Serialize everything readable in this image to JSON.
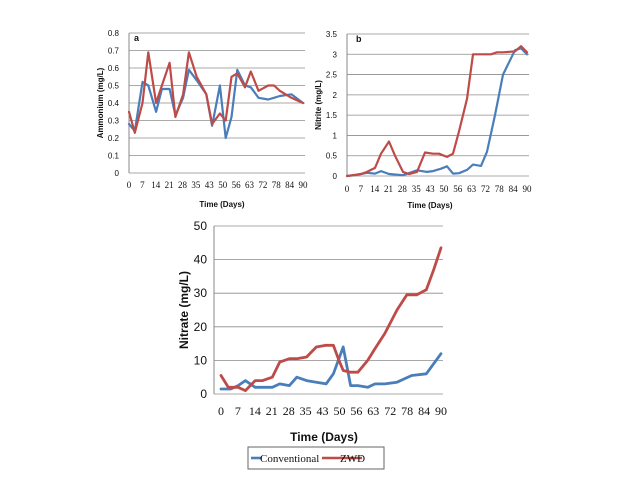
{
  "colors": {
    "conventional": "#4a7ebb",
    "zwd": "#be4b48",
    "grid": "#8c8c8c"
  },
  "legend": {
    "conventional_label": "Conventional",
    "zwd_label": "ZWD"
  },
  "chart_data": [
    {
      "type": "line",
      "panel_label": "a",
      "title": "",
      "xlabel": "Time (Days)",
      "ylabel": "Ammonium (mg/L)",
      "xlim": [
        0,
        90
      ],
      "ylim": [
        0,
        0.8
      ],
      "yticks": [
        "0",
        "0.1",
        "0.2",
        "0.3",
        "0.4",
        "0.5",
        "0.6",
        "0.7",
        "0.8"
      ],
      "xticks": [
        "0",
        "7",
        "14",
        "21",
        "28",
        "35",
        "43",
        "50",
        "56",
        "63",
        "72",
        "78",
        "84",
        "90"
      ],
      "series": [
        {
          "name": "Conventional",
          "color_key": "conventional",
          "x": [
            0,
            3,
            7,
            10,
            14,
            17,
            21,
            24,
            28,
            31,
            35,
            40,
            43,
            47,
            50,
            53,
            56,
            60,
            63,
            67,
            72,
            75,
            78,
            84,
            90
          ],
          "y": [
            0.28,
            0.24,
            0.52,
            0.5,
            0.35,
            0.48,
            0.48,
            0.33,
            0.43,
            0.59,
            0.53,
            0.45,
            0.27,
            0.5,
            0.2,
            0.32,
            0.59,
            0.5,
            0.49,
            0.43,
            0.42,
            0.43,
            0.44,
            0.45,
            0.4
          ]
        },
        {
          "name": "ZWD",
          "color_key": "zwd",
          "x": [
            0,
            3,
            7,
            10,
            14,
            17,
            21,
            24,
            28,
            31,
            35,
            40,
            43,
            47,
            50,
            53,
            56,
            60,
            63,
            67,
            72,
            75,
            78,
            84,
            90
          ],
          "y": [
            0.35,
            0.23,
            0.4,
            0.69,
            0.4,
            0.5,
            0.63,
            0.32,
            0.45,
            0.69,
            0.55,
            0.45,
            0.28,
            0.34,
            0.3,
            0.55,
            0.57,
            0.49,
            0.58,
            0.47,
            0.5,
            0.5,
            0.47,
            0.43,
            0.4
          ]
        }
      ]
    },
    {
      "type": "line",
      "panel_label": "b",
      "title": "",
      "xlabel": "Time (Days)",
      "ylabel": "Nitrite (mg/L)",
      "xlim": [
        0,
        90
      ],
      "ylim": [
        0,
        3.5
      ],
      "yticks": [
        "0",
        "0.5",
        "1",
        "1.5",
        "2",
        "2.5",
        "3",
        "3.5"
      ],
      "xticks": [
        "0",
        "7",
        "14",
        "21",
        "28",
        "35",
        "43",
        "50",
        "56",
        "63",
        "72",
        "78",
        "84",
        "90"
      ],
      "series": [
        {
          "name": "Conventional",
          "color_key": "conventional",
          "x": [
            0,
            4,
            7,
            10,
            14,
            17,
            21,
            28,
            35,
            40,
            43,
            47,
            50,
            53,
            56,
            60,
            63,
            67,
            70,
            74,
            78,
            84,
            87,
            90
          ],
          "y": [
            0.0,
            0.02,
            0.05,
            0.08,
            0.06,
            0.12,
            0.05,
            0.02,
            0.14,
            0.1,
            0.12,
            0.18,
            0.24,
            0.06,
            0.07,
            0.15,
            0.28,
            0.25,
            0.6,
            1.5,
            2.5,
            3.1,
            3.15,
            3.0
          ]
        },
        {
          "name": "ZWD",
          "color_key": "zwd",
          "x": [
            0,
            4,
            7,
            10,
            14,
            17,
            21,
            24,
            28,
            31,
            35,
            39,
            43,
            46,
            50,
            53,
            56,
            60,
            63,
            67,
            72,
            75,
            78,
            84,
            87,
            90
          ],
          "y": [
            0.0,
            0.03,
            0.05,
            0.1,
            0.2,
            0.55,
            0.85,
            0.5,
            0.1,
            0.05,
            0.1,
            0.58,
            0.55,
            0.55,
            0.47,
            0.55,
            1.1,
            1.9,
            3.0,
            3.0,
            3.0,
            3.05,
            3.05,
            3.07,
            3.2,
            3.05
          ]
        }
      ]
    },
    {
      "type": "line",
      "panel_label": "",
      "title": "",
      "xlabel": "Time (Days)",
      "ylabel": "Nitrate (mg/L)",
      "xlim": [
        0,
        90
      ],
      "ylim": [
        0,
        50
      ],
      "yticks": [
        "0",
        "10",
        "20",
        "30",
        "40",
        "50"
      ],
      "xticks": [
        "0",
        "7",
        "14",
        "21",
        "28",
        "35",
        "43",
        "50",
        "56",
        "63",
        "72",
        "78",
        "84",
        "90"
      ],
      "series": [
        {
          "name": "Conventional",
          "color_key": "conventional",
          "x": [
            0,
            4,
            7,
            10,
            14,
            17,
            21,
            24,
            28,
            31,
            35,
            39,
            43,
            46,
            50,
            53,
            56,
            60,
            63,
            67,
            72,
            78,
            84,
            90
          ],
          "y": [
            1.5,
            1.5,
            2.5,
            4.0,
            2.0,
            2.0,
            2.0,
            3.0,
            2.5,
            5.0,
            4.0,
            3.5,
            3.0,
            6.0,
            14.0,
            2.5,
            2.5,
            2.0,
            3.0,
            3.0,
            3.5,
            5.5,
            6.0,
            12.0
          ]
        },
        {
          "name": "ZWD",
          "color_key": "zwd",
          "x": [
            0,
            3,
            7,
            10,
            14,
            17,
            21,
            24,
            28,
            31,
            35,
            39,
            43,
            46,
            48,
            50,
            53,
            56,
            60,
            63,
            67,
            72,
            76,
            80,
            84,
            87,
            90
          ],
          "y": [
            5.5,
            2.0,
            2.0,
            1.0,
            4.0,
            4.0,
            5.0,
            9.5,
            10.5,
            10.5,
            11.0,
            14.0,
            14.5,
            14.5,
            10.5,
            7.0,
            6.5,
            6.5,
            10.0,
            13.5,
            18.0,
            25.0,
            29.5,
            29.5,
            31.0,
            37.0,
            43.5
          ]
        }
      ]
    }
  ]
}
